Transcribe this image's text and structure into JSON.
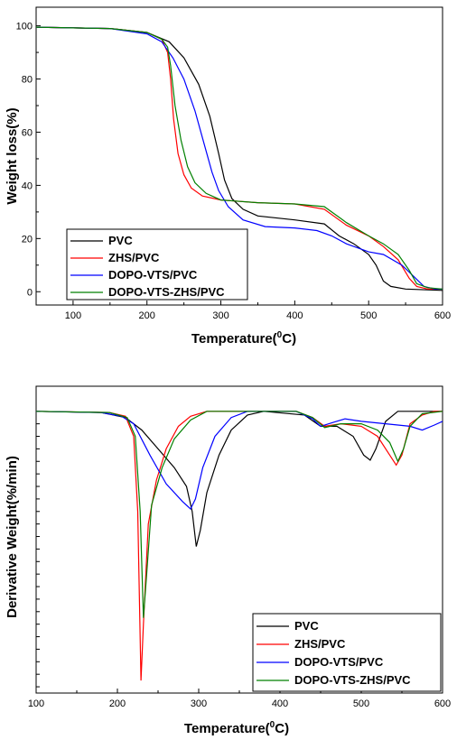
{
  "chart_data": [
    {
      "type": "line",
      "xlabel": "Temperature(",
      "xlabel_sup": "0",
      "xlabel_tail": "C)",
      "ylabel": "Weight loss(%)",
      "xlim": [
        50,
        600
      ],
      "ylim": [
        -5,
        107
      ],
      "xticks": [
        100,
        200,
        300,
        400,
        500,
        600
      ],
      "yticks": [
        0,
        20,
        40,
        60,
        80,
        100
      ],
      "xtick_labels": [
        "100",
        "200",
        "300",
        "400",
        "500",
        "600"
      ],
      "ytick_labels": [
        "0",
        "20",
        "40",
        "60",
        "80",
        "100"
      ],
      "legend_position": "bottom-left",
      "series": [
        {
          "name": "PVC",
          "color": "#000000",
          "points": [
            [
              50,
              99.5
            ],
            [
              150,
              99
            ],
            [
              200,
              97.5
            ],
            [
              230,
              94
            ],
            [
              250,
              88
            ],
            [
              270,
              78
            ],
            [
              285,
              66
            ],
            [
              297,
              52
            ],
            [
              305,
              42
            ],
            [
              315,
              35
            ],
            [
              330,
              31
            ],
            [
              350,
              28.5
            ],
            [
              400,
              27
            ],
            [
              440,
              25.5
            ],
            [
              460,
              21
            ],
            [
              480,
              18
            ],
            [
              500,
              14
            ],
            [
              510,
              10
            ],
            [
              520,
              4
            ],
            [
              530,
              2
            ],
            [
              550,
              1
            ],
            [
              600,
              0.5
            ]
          ]
        },
        {
          "name": "ZHS/PVC",
          "color": "#ff0000",
          "points": [
            [
              50,
              99.5
            ],
            [
              150,
              99
            ],
            [
              200,
              97.5
            ],
            [
              220,
              95
            ],
            [
              228,
              90
            ],
            [
              232,
              80
            ],
            [
              236,
              65
            ],
            [
              242,
              52
            ],
            [
              250,
              44
            ],
            [
              260,
              39
            ],
            [
              275,
              36
            ],
            [
              300,
              34.5
            ],
            [
              350,
              33.5
            ],
            [
              400,
              33
            ],
            [
              440,
              31
            ],
            [
              470,
              25
            ],
            [
              500,
              21
            ],
            [
              520,
              17
            ],
            [
              540,
              12
            ],
            [
              555,
              5
            ],
            [
              565,
              2
            ],
            [
              580,
              1
            ],
            [
              600,
              1
            ]
          ]
        },
        {
          "name": "DOPO-VTS/PVC",
          "color": "#0000ff",
          "points": [
            [
              50,
              99.5
            ],
            [
              150,
              99
            ],
            [
              200,
              97
            ],
            [
              220,
              94
            ],
            [
              235,
              88
            ],
            [
              250,
              80
            ],
            [
              265,
              68
            ],
            [
              278,
              55
            ],
            [
              288,
              45
            ],
            [
              297,
              38
            ],
            [
              310,
              32
            ],
            [
              330,
              27
            ],
            [
              360,
              24.5
            ],
            [
              400,
              24
            ],
            [
              430,
              23
            ],
            [
              450,
              21
            ],
            [
              470,
              18
            ],
            [
              500,
              15
            ],
            [
              520,
              14
            ],
            [
              545,
              10
            ],
            [
              560,
              6
            ],
            [
              575,
              2
            ],
            [
              590,
              1
            ],
            [
              600,
              1
            ]
          ]
        },
        {
          "name": "DOPO-VTS-ZHS/PVC",
          "color": "#008000",
          "points": [
            [
              50,
              99.5
            ],
            [
              150,
              99
            ],
            [
              200,
              97.5
            ],
            [
              220,
              95
            ],
            [
              228,
              92
            ],
            [
              232,
              85
            ],
            [
              238,
              70
            ],
            [
              246,
              57
            ],
            [
              255,
              47
            ],
            [
              265,
              41
            ],
            [
              280,
              37
            ],
            [
              300,
              34.5
            ],
            [
              350,
              33.5
            ],
            [
              400,
              33
            ],
            [
              440,
              32
            ],
            [
              470,
              26
            ],
            [
              500,
              21
            ],
            [
              520,
              18
            ],
            [
              540,
              14
            ],
            [
              555,
              8
            ],
            [
              565,
              3
            ],
            [
              580,
              1.5
            ],
            [
              600,
              1
            ]
          ]
        }
      ]
    },
    {
      "type": "line",
      "xlabel": "Temperature(",
      "xlabel_sup": "0",
      "xlabel_tail": "C)",
      "ylabel": "Derivative Weight(%/min)",
      "xlim": [
        100,
        600
      ],
      "ylim": [
        -2.25,
        0.2
      ],
      "xticks": [
        100,
        200,
        300,
        400,
        500,
        600
      ],
      "xtick_labels": [
        "100",
        "200",
        "300",
        "400",
        "500",
        "600"
      ],
      "ytick_values": [
        0,
        -0.1,
        -0.2,
        -0.3,
        -0.4,
        -0.5,
        -0.6,
        -0.7,
        -0.8,
        -0.9,
        -1.0,
        -1.1,
        -1.2,
        -1.3,
        -1.4,
        -1.5,
        -1.6,
        -1.7,
        -1.8,
        -1.9,
        -2.0,
        -2.1,
        -2.2
      ],
      "legend_position": "bottom-right",
      "series": [
        {
          "name": "PVC",
          "color": "#000000",
          "points": [
            [
              100,
              0
            ],
            [
              180,
              -0.01
            ],
            [
              210,
              -0.05
            ],
            [
              230,
              -0.15
            ],
            [
              250,
              -0.3
            ],
            [
              270,
              -0.45
            ],
            [
              285,
              -0.6
            ],
            [
              292,
              -0.8
            ],
            [
              297,
              -1.08
            ],
            [
              302,
              -0.95
            ],
            [
              310,
              -0.65
            ],
            [
              325,
              -0.35
            ],
            [
              340,
              -0.15
            ],
            [
              360,
              -0.03
            ],
            [
              380,
              0
            ],
            [
              430,
              -0.03
            ],
            [
              450,
              -0.12
            ],
            [
              470,
              -0.12
            ],
            [
              490,
              -0.2
            ],
            [
              503,
              -0.35
            ],
            [
              511,
              -0.39
            ],
            [
              518,
              -0.3
            ],
            [
              530,
              -0.08
            ],
            [
              545,
              0
            ],
            [
              600,
              0
            ]
          ]
        },
        {
          "name": "ZHS/PVC",
          "color": "#ff0000",
          "points": [
            [
              100,
              0
            ],
            [
              190,
              -0.01
            ],
            [
              210,
              -0.04
            ],
            [
              220,
              -0.2
            ],
            [
              225,
              -0.8
            ],
            [
              229,
              -2.15
            ],
            [
              232,
              -1.7
            ],
            [
              238,
              -0.9
            ],
            [
              248,
              -0.55
            ],
            [
              260,
              -0.3
            ],
            [
              275,
              -0.12
            ],
            [
              290,
              -0.04
            ],
            [
              310,
              0
            ],
            [
              420,
              0
            ],
            [
              440,
              -0.05
            ],
            [
              455,
              -0.12
            ],
            [
              475,
              -0.1
            ],
            [
              500,
              -0.12
            ],
            [
              520,
              -0.2
            ],
            [
              535,
              -0.35
            ],
            [
              543,
              -0.43
            ],
            [
              550,
              -0.35
            ],
            [
              560,
              -0.1
            ],
            [
              575,
              -0.03
            ],
            [
              590,
              0
            ],
            [
              600,
              0
            ]
          ]
        },
        {
          "name": "DOPO-VTS/PVC",
          "color": "#0000ff",
          "points": [
            [
              100,
              0
            ],
            [
              180,
              -0.01
            ],
            [
              205,
              -0.04
            ],
            [
              220,
              -0.1
            ],
            [
              240,
              -0.35
            ],
            [
              260,
              -0.58
            ],
            [
              280,
              -0.72
            ],
            [
              290,
              -0.78
            ],
            [
              296,
              -0.7
            ],
            [
              305,
              -0.45
            ],
            [
              320,
              -0.2
            ],
            [
              340,
              -0.05
            ],
            [
              360,
              0
            ],
            [
              420,
              0
            ],
            [
              440,
              -0.06
            ],
            [
              450,
              -0.12
            ],
            [
              465,
              -0.09
            ],
            [
              480,
              -0.06
            ],
            [
              500,
              -0.08
            ],
            [
              530,
              -0.1
            ],
            [
              560,
              -0.12
            ],
            [
              575,
              -0.15
            ],
            [
              590,
              -0.11
            ],
            [
              600,
              -0.08
            ]
          ]
        },
        {
          "name": "DOPO-VTS-ZHS/PVC",
          "color": "#008000",
          "points": [
            [
              100,
              0
            ],
            [
              190,
              -0.01
            ],
            [
              212,
              -0.05
            ],
            [
              222,
              -0.2
            ],
            [
              228,
              -0.8
            ],
            [
              232,
              -1.65
            ],
            [
              236,
              -1.3
            ],
            [
              242,
              -0.75
            ],
            [
              255,
              -0.45
            ],
            [
              270,
              -0.22
            ],
            [
              290,
              -0.07
            ],
            [
              310,
              0
            ],
            [
              420,
              0
            ],
            [
              440,
              -0.05
            ],
            [
              455,
              -0.13
            ],
            [
              475,
              -0.1
            ],
            [
              500,
              -0.1
            ],
            [
              520,
              -0.15
            ],
            [
              535,
              -0.25
            ],
            [
              545,
              -0.4
            ],
            [
              552,
              -0.3
            ],
            [
              560,
              -0.12
            ],
            [
              575,
              -0.02
            ],
            [
              600,
              0
            ]
          ]
        }
      ]
    }
  ]
}
